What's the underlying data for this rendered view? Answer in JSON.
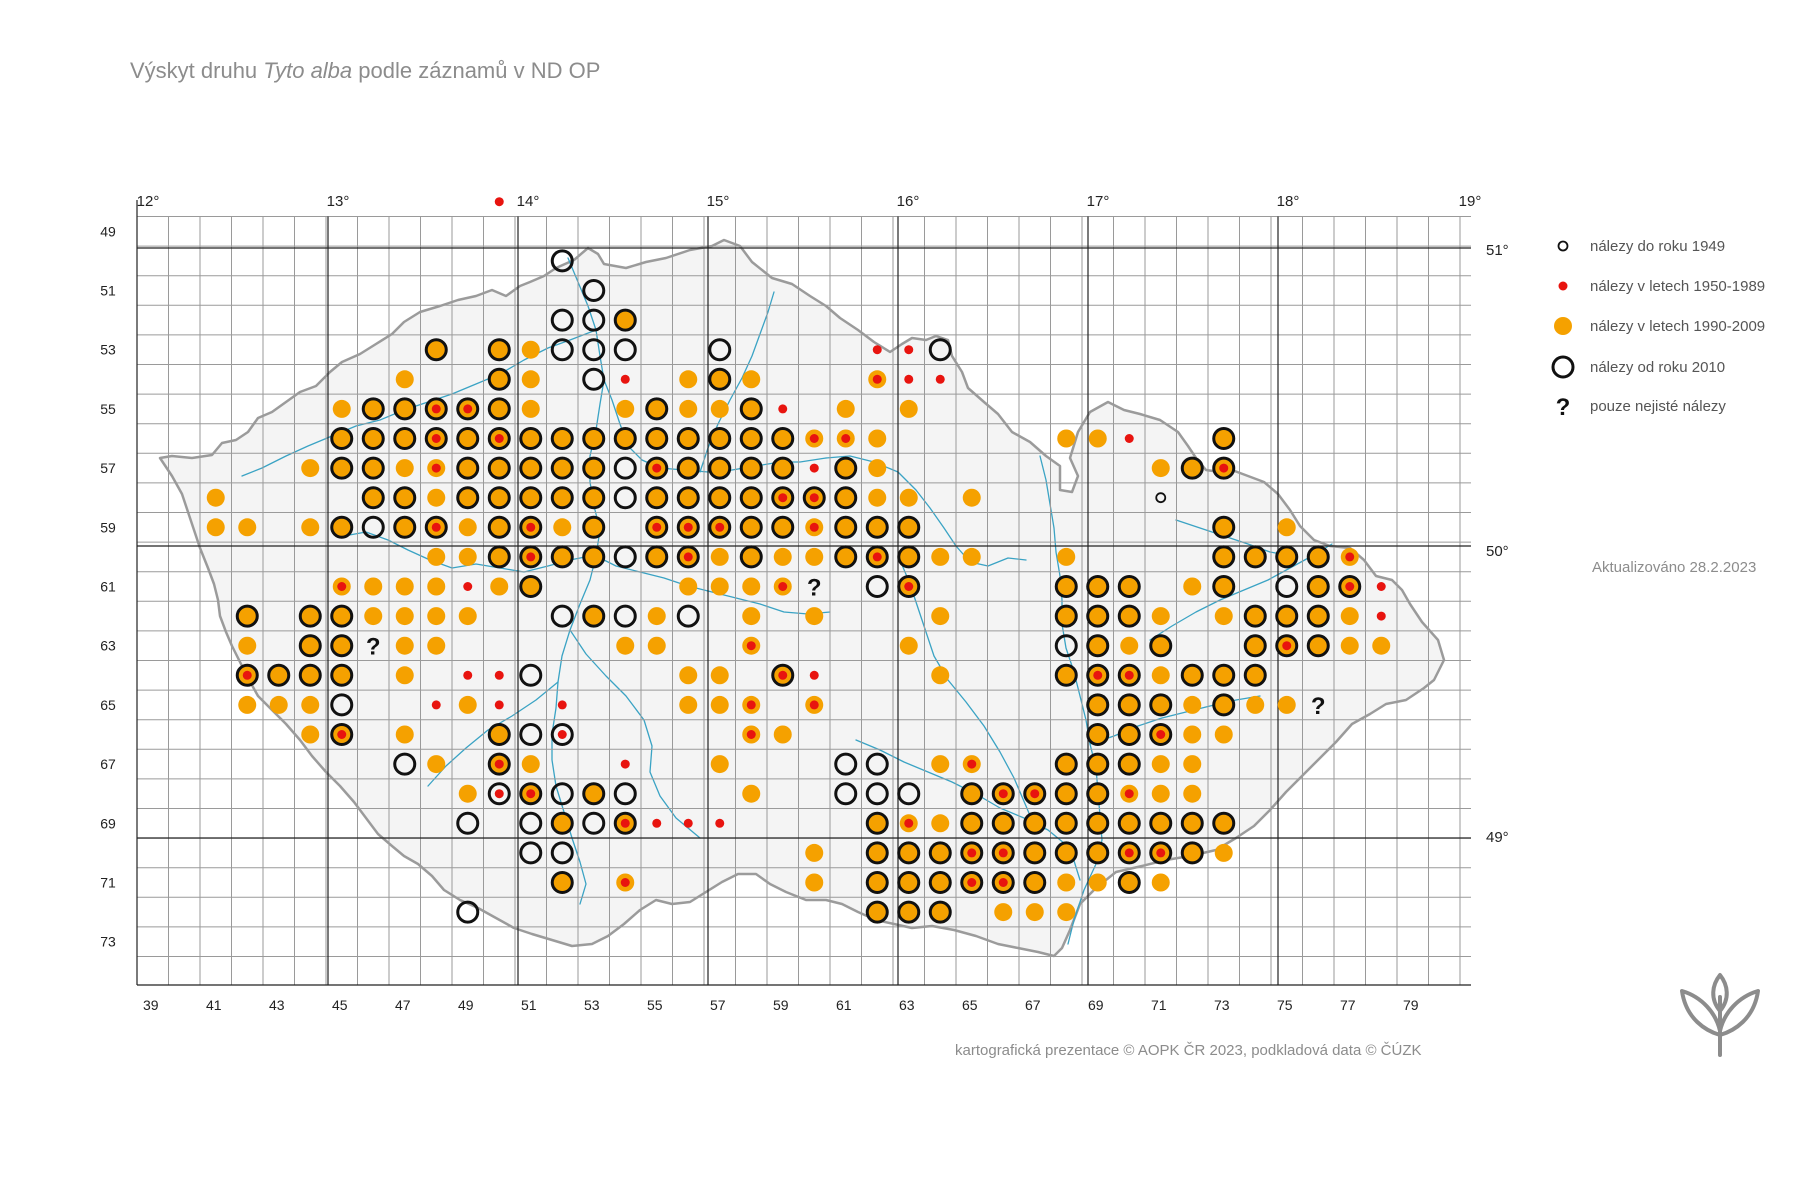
{
  "title": {
    "prefix": "Výskyt druhu",
    "species": "Tyto alba",
    "suffix": "podle záznamů v ND OP"
  },
  "legend": [
    {
      "symbol": "ring-small",
      "label": "nálezy do roku 1949"
    },
    {
      "symbol": "dot-red",
      "label": "nálezy v letech 1950-1989"
    },
    {
      "symbol": "dot-orange",
      "label": "nálezy v letech 1990-2009"
    },
    {
      "symbol": "ring-large",
      "label": "nálezy od roku 2010"
    },
    {
      "symbol": "question",
      "label": "pouze nejisté nálezy"
    }
  ],
  "updated": "Aktualizováno 28.2.2023",
  "credit": "kartografická prezentace © AOPK ČR 2023, podkladová data © ČÚZK",
  "logo_icon": "aopk-leaf-logo-icon",
  "colors": {
    "orange": "#f5a100",
    "red": "#e8140f",
    "ring": "#111111",
    "river": "#3aa3c4",
    "grid": "#9a9a9a",
    "grid_major": "#222222",
    "border": "#9b9b9b",
    "text": "#8c8c8c"
  },
  "grid": {
    "first_column": 38,
    "last_column": 80,
    "first_row": 48,
    "last_row": 74
  },
  "top_labels": [
    "12°",
    "13°",
    "14°",
    "15°",
    "16°",
    "17°",
    "18°",
    "19°"
  ],
  "right_labels": [
    "51°",
    "50°",
    "49°"
  ],
  "bottom_labels": [
    "39",
    "41",
    "43",
    "45",
    "47",
    "49",
    "51",
    "53",
    "55",
    "57",
    "59",
    "61",
    "63",
    "65",
    "67",
    "69",
    "71",
    "73",
    "75",
    "77",
    "79"
  ],
  "left_labels": [
    "49",
    "51",
    "53",
    "55",
    "57",
    "59",
    "61",
    "63",
    "65",
    "67",
    "69",
    "71",
    "73"
  ],
  "records_key": "d = orange dot 1990-2009, r = red dot 1950-1989, R = ring since 2010, s = small ring to 1949, q = uncertain",
  "records": [
    [
      52,
      50,
      "R"
    ],
    [
      53,
      51,
      "R"
    ],
    [
      52,
      52,
      "R"
    ],
    [
      53,
      52,
      "R"
    ],
    [
      54,
      52,
      "dR"
    ],
    [
      48,
      53,
      "dR"
    ],
    [
      50,
      53,
      "dR"
    ],
    [
      51,
      53,
      "d"
    ],
    [
      52,
      53,
      "R"
    ],
    [
      53,
      53,
      "R"
    ],
    [
      54,
      53,
      "R"
    ],
    [
      57,
      53,
      "R"
    ],
    [
      62,
      53,
      "r"
    ],
    [
      63,
      53,
      "r"
    ],
    [
      64,
      53,
      "R"
    ],
    [
      47,
      54,
      "d"
    ],
    [
      50,
      54,
      "dR"
    ],
    [
      51,
      54,
      "d"
    ],
    [
      53,
      54,
      "R"
    ],
    [
      54,
      54,
      "r"
    ],
    [
      56,
      54,
      "d"
    ],
    [
      57,
      54,
      "dR"
    ],
    [
      58,
      54,
      "d"
    ],
    [
      62,
      54,
      "dr"
    ],
    [
      63,
      54,
      "r"
    ],
    [
      64,
      54,
      "r"
    ],
    [
      45,
      55,
      "d"
    ],
    [
      46,
      55,
      "dR"
    ],
    [
      47,
      55,
      "dR"
    ],
    [
      48,
      55,
      "drR"
    ],
    [
      49,
      55,
      "drR"
    ],
    [
      50,
      55,
      "dR"
    ],
    [
      51,
      55,
      "d"
    ],
    [
      54,
      55,
      "d"
    ],
    [
      55,
      55,
      "dR"
    ],
    [
      56,
      55,
      "d"
    ],
    [
      57,
      55,
      "d"
    ],
    [
      58,
      55,
      "dR"
    ],
    [
      59,
      55,
      "r"
    ],
    [
      61,
      55,
      "d"
    ],
    [
      63,
      55,
      "d"
    ],
    [
      45,
      56,
      "dR"
    ],
    [
      46,
      56,
      "dR"
    ],
    [
      47,
      56,
      "dR"
    ],
    [
      48,
      56,
      "drR"
    ],
    [
      49,
      56,
      "dR"
    ],
    [
      50,
      56,
      "drR"
    ],
    [
      51,
      56,
      "dR"
    ],
    [
      52,
      56,
      "dR"
    ],
    [
      53,
      56,
      "dR"
    ],
    [
      54,
      56,
      "dR"
    ],
    [
      55,
      56,
      "dR"
    ],
    [
      56,
      56,
      "dR"
    ],
    [
      57,
      56,
      "dR"
    ],
    [
      58,
      56,
      "dR"
    ],
    [
      59,
      56,
      "dR"
    ],
    [
      60,
      56,
      "dr"
    ],
    [
      61,
      56,
      "dr"
    ],
    [
      62,
      56,
      "d"
    ],
    [
      68,
      56,
      "d"
    ],
    [
      69,
      56,
      "d"
    ],
    [
      70,
      56,
      "r"
    ],
    [
      73,
      56,
      "dR"
    ],
    [
      44,
      57,
      "d"
    ],
    [
      45,
      57,
      "dR"
    ],
    [
      46,
      57,
      "dR"
    ],
    [
      47,
      57,
      "d"
    ],
    [
      48,
      57,
      "dr"
    ],
    [
      49,
      57,
      "dR"
    ],
    [
      50,
      57,
      "dR"
    ],
    [
      51,
      57,
      "dR"
    ],
    [
      52,
      57,
      "dR"
    ],
    [
      53,
      57,
      "dR"
    ],
    [
      54,
      57,
      "R"
    ],
    [
      55,
      57,
      "drR"
    ],
    [
      56,
      57,
      "dR"
    ],
    [
      57,
      57,
      "dR"
    ],
    [
      58,
      57,
      "dR"
    ],
    [
      59,
      57,
      "dR"
    ],
    [
      60,
      57,
      "r"
    ],
    [
      61,
      57,
      "dR"
    ],
    [
      62,
      57,
      "d"
    ],
    [
      71,
      57,
      "d"
    ],
    [
      72,
      57,
      "dR"
    ],
    [
      73,
      57,
      "drR"
    ],
    [
      41,
      58,
      "d"
    ],
    [
      46,
      58,
      "dR"
    ],
    [
      47,
      58,
      "dR"
    ],
    [
      48,
      58,
      "d"
    ],
    [
      49,
      58,
      "dR"
    ],
    [
      50,
      58,
      "dR"
    ],
    [
      51,
      58,
      "dR"
    ],
    [
      52,
      58,
      "dR"
    ],
    [
      53,
      58,
      "dR"
    ],
    [
      54,
      58,
      "R"
    ],
    [
      55,
      58,
      "dR"
    ],
    [
      56,
      58,
      "dR"
    ],
    [
      57,
      58,
      "dR"
    ],
    [
      58,
      58,
      "dR"
    ],
    [
      59,
      58,
      "drR"
    ],
    [
      60,
      58,
      "drR"
    ],
    [
      61,
      58,
      "dR"
    ],
    [
      62,
      58,
      "d"
    ],
    [
      63,
      58,
      "d"
    ],
    [
      65,
      58,
      "d"
    ],
    [
      71,
      58,
      "s"
    ],
    [
      41,
      59,
      "d"
    ],
    [
      42,
      59,
      "d"
    ],
    [
      44,
      59,
      "d"
    ],
    [
      45,
      59,
      "dR"
    ],
    [
      46,
      59,
      "R"
    ],
    [
      47,
      59,
      "dR"
    ],
    [
      48,
      59,
      "drR"
    ],
    [
      49,
      59,
      "d"
    ],
    [
      50,
      59,
      "dR"
    ],
    [
      51,
      59,
      "drR"
    ],
    [
      52,
      59,
      "d"
    ],
    [
      53,
      59,
      "dR"
    ],
    [
      55,
      59,
      "drR"
    ],
    [
      56,
      59,
      "drR"
    ],
    [
      57,
      59,
      "drR"
    ],
    [
      58,
      59,
      "dR"
    ],
    [
      59,
      59,
      "dR"
    ],
    [
      60,
      59,
      "dr"
    ],
    [
      61,
      59,
      "dR"
    ],
    [
      62,
      59,
      "dR"
    ],
    [
      63,
      59,
      "dR"
    ],
    [
      73,
      59,
      "dR"
    ],
    [
      75,
      59,
      "d"
    ],
    [
      48,
      60,
      "d"
    ],
    [
      49,
      60,
      "d"
    ],
    [
      50,
      60,
      "dR"
    ],
    [
      51,
      60,
      "drR"
    ],
    [
      52,
      60,
      "dR"
    ],
    [
      53,
      60,
      "dR"
    ],
    [
      54,
      60,
      "R"
    ],
    [
      55,
      60,
      "dR"
    ],
    [
      56,
      60,
      "drR"
    ],
    [
      57,
      60,
      "d"
    ],
    [
      58,
      60,
      "dR"
    ],
    [
      59,
      60,
      "d"
    ],
    [
      60,
      60,
      "d"
    ],
    [
      61,
      60,
      "dR"
    ],
    [
      62,
      60,
      "drR"
    ],
    [
      63,
      60,
      "dR"
    ],
    [
      64,
      60,
      "d"
    ],
    [
      65,
      60,
      "d"
    ],
    [
      68,
      60,
      "d"
    ],
    [
      73,
      60,
      "dR"
    ],
    [
      74,
      60,
      "dR"
    ],
    [
      75,
      60,
      "dR"
    ],
    [
      76,
      60,
      "dR"
    ],
    [
      77,
      60,
      "dr"
    ],
    [
      45,
      61,
      "dr"
    ],
    [
      46,
      61,
      "d"
    ],
    [
      47,
      61,
      "d"
    ],
    [
      48,
      61,
      "d"
    ],
    [
      49,
      61,
      "r"
    ],
    [
      50,
      61,
      "d"
    ],
    [
      51,
      61,
      "dR"
    ],
    [
      56,
      61,
      "d"
    ],
    [
      57,
      61,
      "d"
    ],
    [
      58,
      61,
      "d"
    ],
    [
      59,
      61,
      "dr"
    ],
    [
      60,
      61,
      "q"
    ],
    [
      62,
      61,
      "R"
    ],
    [
      63,
      61,
      "drR"
    ],
    [
      68,
      61,
      "dR"
    ],
    [
      69,
      61,
      "dR"
    ],
    [
      70,
      61,
      "dR"
    ],
    [
      72,
      61,
      "d"
    ],
    [
      73,
      61,
      "dR"
    ],
    [
      75,
      61,
      "R"
    ],
    [
      76,
      61,
      "dR"
    ],
    [
      77,
      61,
      "drR"
    ],
    [
      78,
      61,
      "r"
    ],
    [
      42,
      62,
      "dR"
    ],
    [
      44,
      62,
      "dR"
    ],
    [
      45,
      62,
      "dR"
    ],
    [
      46,
      62,
      "d"
    ],
    [
      47,
      62,
      "d"
    ],
    [
      48,
      62,
      "d"
    ],
    [
      49,
      62,
      "d"
    ],
    [
      52,
      62,
      "R"
    ],
    [
      53,
      62,
      "dR"
    ],
    [
      54,
      62,
      "R"
    ],
    [
      55,
      62,
      "d"
    ],
    [
      56,
      62,
      "R"
    ],
    [
      58,
      62,
      "d"
    ],
    [
      60,
      62,
      "d"
    ],
    [
      64,
      62,
      "d"
    ],
    [
      68,
      62,
      "dR"
    ],
    [
      69,
      62,
      "dR"
    ],
    [
      70,
      62,
      "dR"
    ],
    [
      71,
      62,
      "d"
    ],
    [
      73,
      62,
      "d"
    ],
    [
      74,
      62,
      "dR"
    ],
    [
      75,
      62,
      "dR"
    ],
    [
      76,
      62,
      "dR"
    ],
    [
      77,
      62,
      "d"
    ],
    [
      78,
      62,
      "r"
    ],
    [
      42,
      63,
      "d"
    ],
    [
      44,
      63,
      "dR"
    ],
    [
      45,
      63,
      "dR"
    ],
    [
      46,
      63,
      "q"
    ],
    [
      47,
      63,
      "d"
    ],
    [
      48,
      63,
      "d"
    ],
    [
      54,
      63,
      "d"
    ],
    [
      55,
      63,
      "d"
    ],
    [
      58,
      63,
      "dr"
    ],
    [
      63,
      63,
      "d"
    ],
    [
      68,
      63,
      "R"
    ],
    [
      69,
      63,
      "dR"
    ],
    [
      70,
      63,
      "d"
    ],
    [
      71,
      63,
      "dR"
    ],
    [
      74,
      63,
      "dR"
    ],
    [
      75,
      63,
      "drR"
    ],
    [
      76,
      63,
      "dR"
    ],
    [
      77,
      63,
      "d"
    ],
    [
      78,
      63,
      "d"
    ],
    [
      42,
      64,
      "drR"
    ],
    [
      43,
      64,
      "dR"
    ],
    [
      44,
      64,
      "dR"
    ],
    [
      45,
      64,
      "dR"
    ],
    [
      47,
      64,
      "d"
    ],
    [
      49,
      64,
      "r"
    ],
    [
      50,
      64,
      "r"
    ],
    [
      51,
      64,
      "R"
    ],
    [
      56,
      64,
      "d"
    ],
    [
      57,
      64,
      "d"
    ],
    [
      59,
      64,
      "drR"
    ],
    [
      60,
      64,
      "r"
    ],
    [
      64,
      64,
      "d"
    ],
    [
      68,
      64,
      "dR"
    ],
    [
      69,
      64,
      "drR"
    ],
    [
      70,
      64,
      "drR"
    ],
    [
      71,
      64,
      "d"
    ],
    [
      72,
      64,
      "dR"
    ],
    [
      73,
      64,
      "dR"
    ],
    [
      74,
      64,
      "dR"
    ],
    [
      42,
      65,
      "d"
    ],
    [
      43,
      65,
      "d"
    ],
    [
      44,
      65,
      "d"
    ],
    [
      45,
      65,
      "R"
    ],
    [
      48,
      65,
      "r"
    ],
    [
      49,
      65,
      "d"
    ],
    [
      50,
      65,
      "r"
    ],
    [
      52,
      65,
      "r"
    ],
    [
      56,
      65,
      "d"
    ],
    [
      57,
      65,
      "d"
    ],
    [
      58,
      65,
      "dr"
    ],
    [
      60,
      65,
      "dr"
    ],
    [
      69,
      65,
      "dR"
    ],
    [
      70,
      65,
      "dR"
    ],
    [
      71,
      65,
      "dR"
    ],
    [
      72,
      65,
      "d"
    ],
    [
      73,
      65,
      "dR"
    ],
    [
      74,
      65,
      "d"
    ],
    [
      75,
      65,
      "d"
    ],
    [
      76,
      65,
      "q"
    ],
    [
      44,
      66,
      "d"
    ],
    [
      45,
      66,
      "drR"
    ],
    [
      47,
      66,
      "d"
    ],
    [
      50,
      66,
      "dR"
    ],
    [
      51,
      66,
      "R"
    ],
    [
      52,
      66,
      "rR"
    ],
    [
      58,
      66,
      "dr"
    ],
    [
      59,
      66,
      "d"
    ],
    [
      69,
      66,
      "dR"
    ],
    [
      70,
      66,
      "dR"
    ],
    [
      71,
      66,
      "drR"
    ],
    [
      72,
      66,
      "d"
    ],
    [
      73,
      66,
      "d"
    ],
    [
      47,
      67,
      "R"
    ],
    [
      48,
      67,
      "d"
    ],
    [
      50,
      67,
      "drR"
    ],
    [
      51,
      67,
      "d"
    ],
    [
      54,
      67,
      "r"
    ],
    [
      57,
      67,
      "d"
    ],
    [
      61,
      67,
      "R"
    ],
    [
      62,
      67,
      "R"
    ],
    [
      64,
      67,
      "d"
    ],
    [
      65,
      67,
      "dr"
    ],
    [
      68,
      67,
      "dR"
    ],
    [
      69,
      67,
      "dR"
    ],
    [
      70,
      67,
      "dR"
    ],
    [
      71,
      67,
      "d"
    ],
    [
      72,
      67,
      "d"
    ],
    [
      49,
      68,
      "d"
    ],
    [
      50,
      68,
      "rR"
    ],
    [
      51,
      68,
      "drR"
    ],
    [
      52,
      68,
      "R"
    ],
    [
      53,
      68,
      "dR"
    ],
    [
      54,
      68,
      "R"
    ],
    [
      58,
      68,
      "d"
    ],
    [
      61,
      68,
      "R"
    ],
    [
      62,
      68,
      "R"
    ],
    [
      63,
      68,
      "R"
    ],
    [
      65,
      68,
      "dR"
    ],
    [
      66,
      68,
      "drR"
    ],
    [
      67,
      68,
      "drR"
    ],
    [
      68,
      68,
      "dR"
    ],
    [
      69,
      68,
      "dR"
    ],
    [
      70,
      68,
      "dr"
    ],
    [
      71,
      68,
      "d"
    ],
    [
      72,
      68,
      "d"
    ],
    [
      49,
      69,
      "R"
    ],
    [
      51,
      69,
      "R"
    ],
    [
      52,
      69,
      "dR"
    ],
    [
      53,
      69,
      "R"
    ],
    [
      54,
      69,
      "drR"
    ],
    [
      55,
      69,
      "r"
    ],
    [
      56,
      69,
      "r"
    ],
    [
      57,
      69,
      "r"
    ],
    [
      62,
      69,
      "dR"
    ],
    [
      63,
      69,
      "dr"
    ],
    [
      64,
      69,
      "d"
    ],
    [
      65,
      69,
      "dR"
    ],
    [
      66,
      69,
      "dR"
    ],
    [
      67,
      69,
      "dR"
    ],
    [
      68,
      69,
      "dR"
    ],
    [
      69,
      69,
      "dR"
    ],
    [
      70,
      69,
      "dR"
    ],
    [
      71,
      69,
      "dR"
    ],
    [
      72,
      69,
      "dR"
    ],
    [
      73,
      69,
      "dR"
    ],
    [
      51,
      70,
      "R"
    ],
    [
      52,
      70,
      "R"
    ],
    [
      60,
      70,
      "d"
    ],
    [
      62,
      70,
      "dR"
    ],
    [
      63,
      70,
      "dR"
    ],
    [
      64,
      70,
      "dR"
    ],
    [
      65,
      70,
      "drR"
    ],
    [
      66,
      70,
      "drR"
    ],
    [
      67,
      70,
      "dR"
    ],
    [
      68,
      70,
      "dR"
    ],
    [
      69,
      70,
      "dR"
    ],
    [
      70,
      70,
      "drR"
    ],
    [
      71,
      70,
      "drR"
    ],
    [
      72,
      70,
      "dR"
    ],
    [
      73,
      70,
      "d"
    ],
    [
      52,
      71,
      "dR"
    ],
    [
      54,
      71,
      "dr"
    ],
    [
      60,
      71,
      "d"
    ],
    [
      62,
      71,
      "dR"
    ],
    [
      63,
      71,
      "dR"
    ],
    [
      64,
      71,
      "dR"
    ],
    [
      65,
      71,
      "drR"
    ],
    [
      66,
      71,
      "drR"
    ],
    [
      67,
      71,
      "dR"
    ],
    [
      68,
      71,
      "d"
    ],
    [
      69,
      71,
      "d"
    ],
    [
      70,
      71,
      "dR"
    ],
    [
      71,
      71,
      "d"
    ],
    [
      49,
      72,
      "R"
    ],
    [
      62,
      72,
      "dR"
    ],
    [
      63,
      72,
      "dR"
    ],
    [
      64,
      72,
      "dR"
    ],
    [
      66,
      72,
      "d"
    ],
    [
      67,
      72,
      "d"
    ],
    [
      68,
      72,
      "d"
    ],
    [
      50,
      48,
      "r"
    ]
  ]
}
